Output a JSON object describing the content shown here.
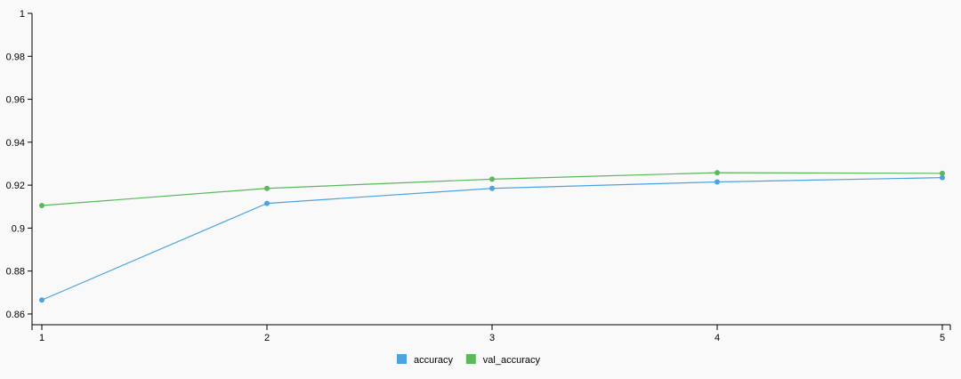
{
  "chart_data": {
    "type": "line",
    "x": [
      1,
      2,
      3,
      4,
      5
    ],
    "xlim": [
      1,
      5
    ],
    "ylim": [
      0.855,
      1
    ],
    "x_ticks": [
      "1",
      "2",
      "3",
      "4",
      "5"
    ],
    "y_ticks": [
      {
        "value": 0.86,
        "label": "0.86"
      },
      {
        "value": 0.88,
        "label": "0.88"
      },
      {
        "value": 0.9,
        "label": "0.9"
      },
      {
        "value": 0.92,
        "label": "0.92"
      },
      {
        "value": 0.94,
        "label": "0.94"
      },
      {
        "value": 0.96,
        "label": "0.96"
      },
      {
        "value": 0.98,
        "label": "0.98"
      },
      {
        "value": 1,
        "label": "1"
      }
    ],
    "grid": false,
    "legend_position": "bottom-center",
    "series": [
      {
        "name": "accuracy",
        "color": "#4ca3e0",
        "values": [
          0.8665,
          0.9115,
          0.9185,
          0.9215,
          0.9235
        ]
      },
      {
        "name": "val_accuracy",
        "color": "#5cb85c",
        "values": [
          0.9105,
          0.9185,
          0.9228,
          0.9258,
          0.9255
        ]
      }
    ]
  }
}
